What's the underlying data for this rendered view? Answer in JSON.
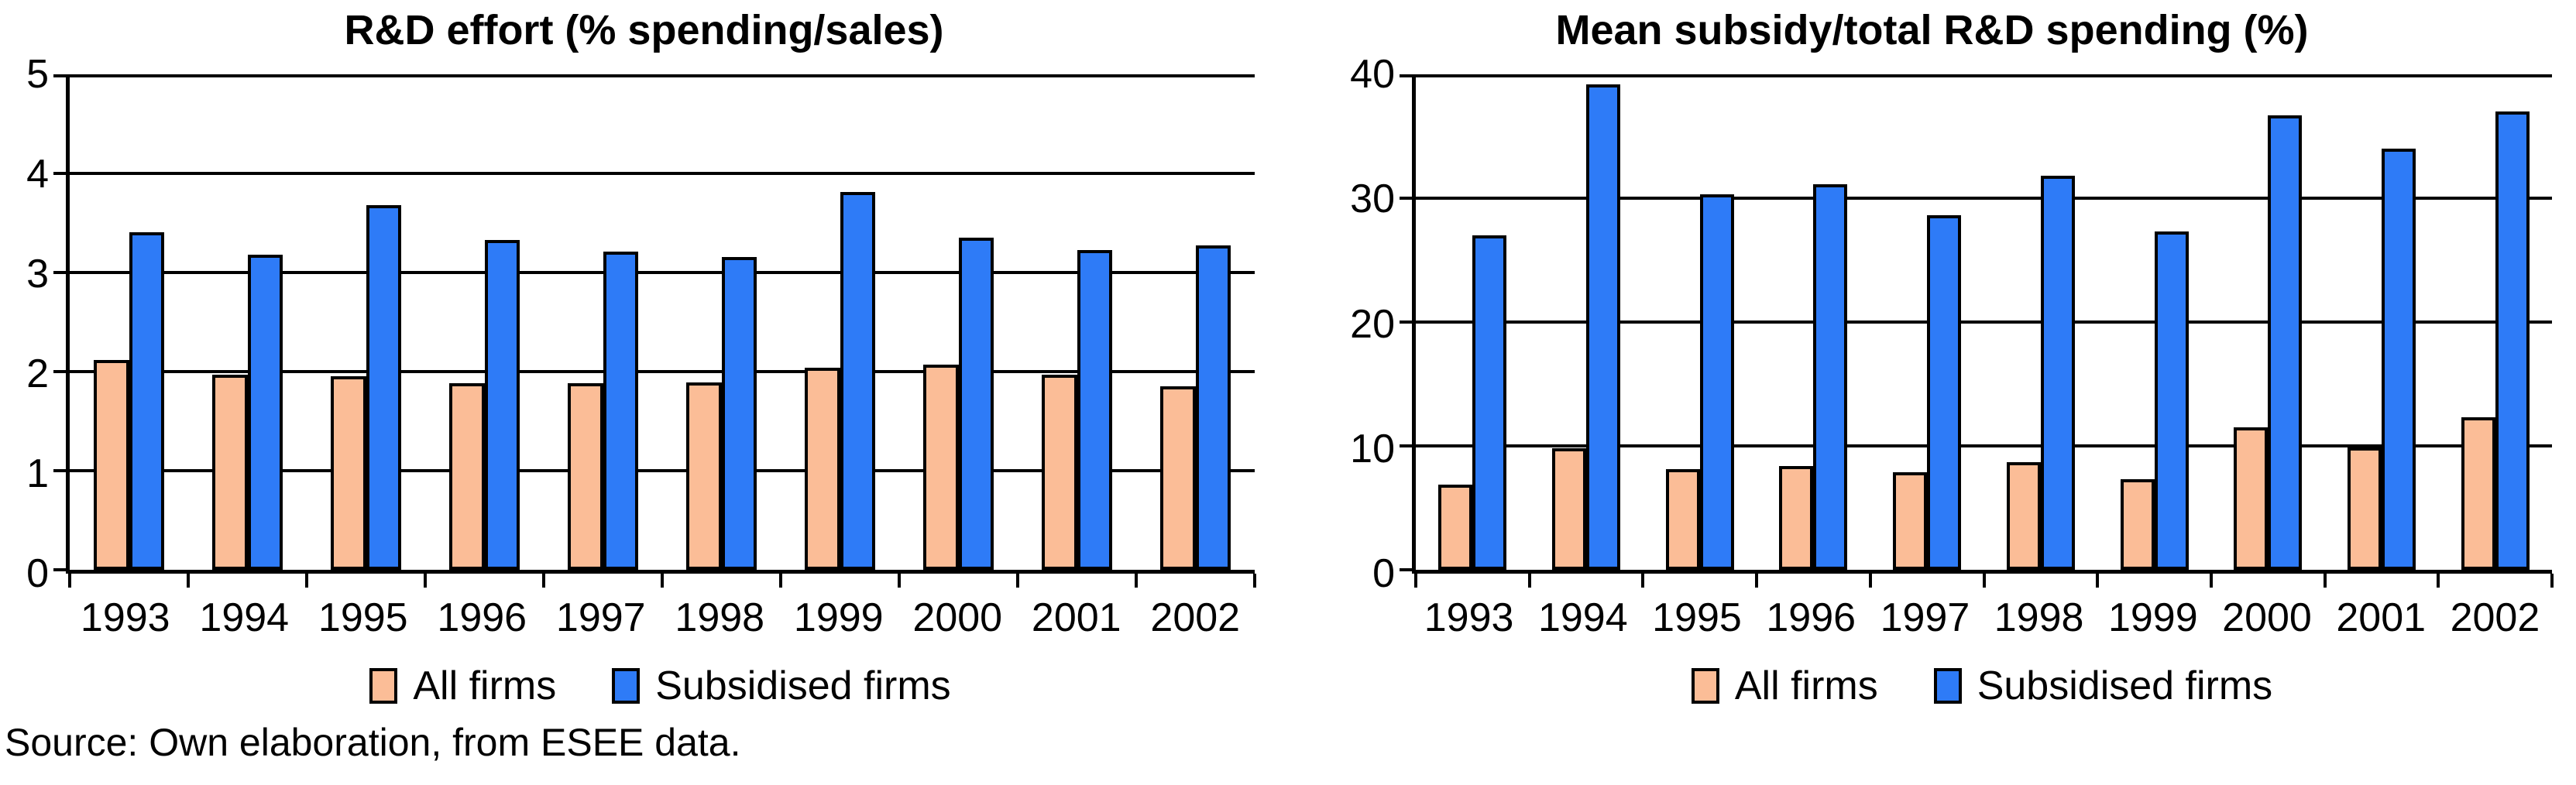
{
  "source_note": "Source: Own elaboration, from ESEE data.",
  "colors": {
    "all_firms": "#FBBD97",
    "subsidised_firms": "#2E7BF7",
    "axis": "#000000",
    "background": "#FFFFFF"
  },
  "legend": {
    "all_firms_label": "All firms",
    "subsidised_firms_label": "Subsidised firms"
  },
  "chart_data": [
    {
      "type": "bar",
      "title": "R&D effort (% spending/sales)",
      "categories": [
        "1993",
        "1994",
        "1995",
        "1996",
        "1997",
        "1998",
        "1999",
        "2000",
        "2001",
        "2002"
      ],
      "series": [
        {
          "name": "All firms",
          "color": "#FBBD97",
          "values": [
            2.12,
            1.97,
            1.95,
            1.88,
            1.88,
            1.89,
            2.04,
            2.07,
            1.97,
            1.85
          ]
        },
        {
          "name": "Subsidised firms",
          "color": "#2E7BF7",
          "values": [
            3.41,
            3.18,
            3.68,
            3.33,
            3.21,
            3.16,
            3.81,
            3.35,
            3.23,
            3.27
          ]
        }
      ],
      "xlabel": "",
      "ylabel": "",
      "ylim": [
        0,
        5
      ],
      "ytick_step": 1,
      "grid": true,
      "legend_position": "bottom"
    },
    {
      "type": "bar",
      "title": "Mean subsidy/total R&D spending (%)",
      "categories": [
        "1993",
        "1994",
        "1995",
        "1996",
        "1997",
        "1998",
        "1999",
        "2000",
        "2001",
        "2002"
      ],
      "series": [
        {
          "name": "All firms",
          "color": "#FBBD97",
          "values": [
            6.9,
            9.8,
            8.1,
            8.4,
            7.9,
            8.7,
            7.3,
            11.5,
            9.9,
            12.3
          ]
        },
        {
          "name": "Subsidised firms",
          "color": "#2E7BF7",
          "values": [
            27.0,
            39.2,
            30.3,
            31.1,
            28.6,
            31.8,
            27.3,
            36.7,
            34.0,
            37.0
          ]
        }
      ],
      "xlabel": "",
      "ylabel": "",
      "ylim": [
        0,
        40
      ],
      "ytick_step": 10,
      "grid": true,
      "legend_position": "bottom"
    }
  ]
}
